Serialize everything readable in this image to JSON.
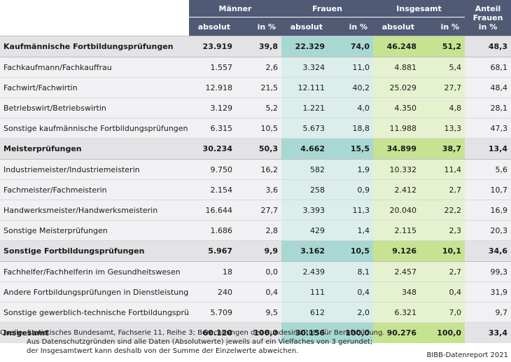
{
  "header": {
    "men": "Männer",
    "women": "Frauen",
    "total": "Insgesamt",
    "share_line1": "Anteil",
    "share_line2": "Frauen",
    "share_line3": "in %",
    "absolute": "absolut",
    "percent": "in %"
  },
  "rows": [
    {
      "label": "Kaufmännische Fortbildungsprüfungen",
      "type": "group",
      "m_abs": "23.919",
      "m_pct": "39,8",
      "f_abs": "22.329",
      "f_pct": "74,0",
      "t_abs": "46.248",
      "t_pct": "51,2",
      "share": "48,3"
    },
    {
      "label": "Fachkaufmann/Fachkauffrau",
      "type": "sub",
      "m_abs": "1.557",
      "m_pct": "2,6",
      "f_abs": "3.324",
      "f_pct": "11,0",
      "t_abs": "4.881",
      "t_pct": "5,4",
      "share": "68,1"
    },
    {
      "label": "Fachwirt/Fachwirtin",
      "type": "sub",
      "m_abs": "12.918",
      "m_pct": "21,5",
      "f_abs": "12.111",
      "f_pct": "40,2",
      "t_abs": "25.029",
      "t_pct": "27,7",
      "share": "48,4"
    },
    {
      "label": "Betriebswirt/Betriebswirtin",
      "type": "sub",
      "m_abs": "3.129",
      "m_pct": "5,2",
      "f_abs": "1.221",
      "f_pct": "4,0",
      "t_abs": "4.350",
      "t_pct": "4,8",
      "share": "28,1"
    },
    {
      "label": "Sonstige kaufmännische Fortbildungsprüfungen",
      "type": "sub",
      "m_abs": "6.315",
      "m_pct": "10,5",
      "f_abs": "5.673",
      "f_pct": "18,8",
      "t_abs": "11.988",
      "t_pct": "13,3",
      "share": "47,3"
    },
    {
      "label": "Meisterprüfungen",
      "type": "group",
      "m_abs": "30.234",
      "m_pct": "50,3",
      "f_abs": "4.662",
      "f_pct": "15,5",
      "t_abs": "34.899",
      "t_pct": "38,7",
      "share": "13,4"
    },
    {
      "label": "Industriemeister/Industriemeisterin",
      "type": "sub",
      "m_abs": "9.750",
      "m_pct": "16,2",
      "f_abs": "582",
      "f_pct": "1,9",
      "t_abs": "10.332",
      "t_pct": "11,4",
      "share": "5,6"
    },
    {
      "label": "Fachmeister/Fachmeisterin",
      "type": "sub",
      "m_abs": "2.154",
      "m_pct": "3,6",
      "f_abs": "258",
      "f_pct": "0,9",
      "t_abs": "2.412",
      "t_pct": "2,7",
      "share": "10,7"
    },
    {
      "label": "Handwerksmeister/Handwerksmeisterin",
      "type": "sub",
      "m_abs": "16.644",
      "m_pct": "27,7",
      "f_abs": "3.393",
      "f_pct": "11,3",
      "t_abs": "20.040",
      "t_pct": "22,2",
      "share": "16,9"
    },
    {
      "label": "Sonstige Meisterprüfungen",
      "type": "sub",
      "m_abs": "1.686",
      "m_pct": "2,8",
      "f_abs": "429",
      "f_pct": "1,4",
      "t_abs": "2.115",
      "t_pct": "2,3",
      "share": "20,3"
    },
    {
      "label": "Sonstige Fortbildungsprüfungen",
      "type": "group",
      "m_abs": "5.967",
      "m_pct": "9,9",
      "f_abs": "3.162",
      "f_pct": "10,5",
      "t_abs": "9.126",
      "t_pct": "10,1",
      "share": "34,6"
    },
    {
      "label": "Fachhelfer/Fachhelferin im Gesundheitswesen",
      "type": "sub",
      "m_abs": "18",
      "m_pct": "0,0",
      "f_abs": "2.439",
      "f_pct": "8,1",
      "t_abs": "2.457",
      "t_pct": "2,7",
      "share": "99,3"
    },
    {
      "label": "Andere Fortbildungsprüfungen in Dienstleistungsberufen",
      "type": "sub",
      "m_abs": "240",
      "m_pct": "0,4",
      "f_abs": "111",
      "f_pct": "0,4",
      "t_abs": "348",
      "t_pct": "0,4",
      "share": "31,9"
    },
    {
      "label": "Sonstige gewerblich-technische Fortbildungsprüfungen",
      "type": "sub",
      "m_abs": "5.709",
      "m_pct": "9,5",
      "f_abs": "612",
      "f_pct": "2,0",
      "t_abs": "6.321",
      "t_pct": "7,0",
      "share": "9,7"
    },
    {
      "label": "Insgesamt",
      "type": "total",
      "m_abs": "60.120",
      "m_pct": "100,0",
      "f_abs": "30.156",
      "f_pct": "100,0",
      "t_abs": "90.276",
      "t_pct": "100,0",
      "share": "33,4"
    }
  ],
  "footer": {
    "line1": "Quelle: Statistisches Bundesamt, Fachserie 11, Reihe 3; Berechnungen des Bundesinstituts für Berufsbildung.",
    "line2": "Aus Datenschutzgründen sind alle Daten (Absolutwerte) jeweils auf ein Vielfaches von 3 gerundet;",
    "line3": "der Insgesamtwert kann deshalb von der Summe der Einzelwerte abweichen.",
    "credit": "BIBB-Datenreport 2021"
  }
}
